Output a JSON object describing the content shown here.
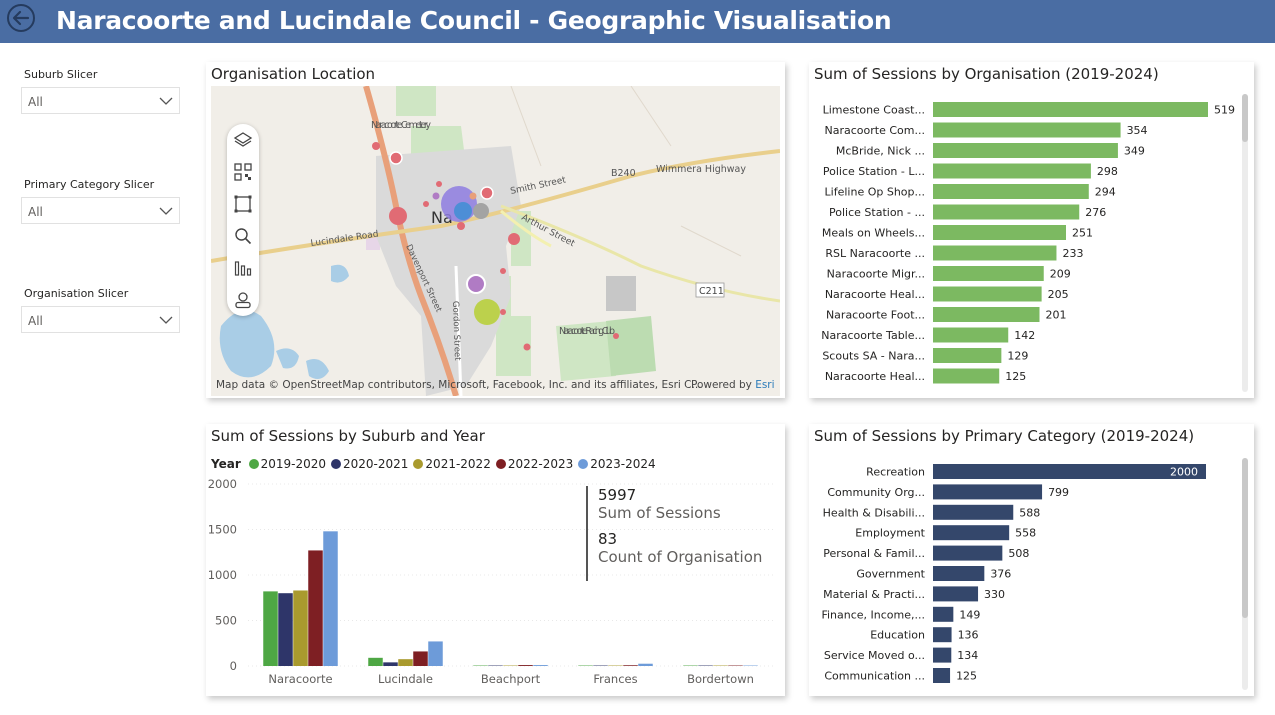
{
  "header": {
    "title": "Naracoorte and Lucindale Council - Geographic Visualisation"
  },
  "slicers": [
    {
      "title": "Suburb Slicer",
      "value": "All"
    },
    {
      "title": "Primary Category Slicer",
      "value": "All"
    },
    {
      "title": "Organisation Slicer",
      "value": "All"
    }
  ],
  "map": {
    "title": "Organisation Location",
    "labels": {
      "cemetery": "Naracoorte Cemetery",
      "highway": "Wimmera Highway",
      "b240": "B240",
      "smith": "Smith Street",
      "arthur": "Arthur Street",
      "lucindale": "Lucindale Road",
      "davenport": "Davenport Street",
      "gordon": "Gordon Street",
      "c211": "C211",
      "racing": "Naracoorte Racing Club",
      "town": "Na"
    },
    "credit": "Map data © OpenStreetMap contributors, Microsoft, Facebook, Inc. and its affiliates, Esri C...",
    "powered_prefix": "Powered by",
    "powered_brand": "Esri",
    "tools": [
      "layers-icon",
      "qr-icon",
      "select-icon",
      "search-icon",
      "bars-icon",
      "person-icon"
    ]
  },
  "org_chart": {
    "title": "Sum of Sessions by Organisation (2019-2024)",
    "color": "#7cb961",
    "chart_data": {
      "type": "bar",
      "categories": [
        "Limestone Coast...",
        "Naracoorte Com...",
        "McBride, Nick ...",
        "Police Station - L...",
        "Lifeline Op Shop...",
        "Police Station - ...",
        "Meals on Wheels...",
        "RSL Naracoorte ...",
        "Naracoorte Migr...",
        "Naracoorte Heal...",
        "Naracoorte Foot...",
        "Naracoorte Table...",
        "Scouts SA - Nara...",
        "Naracoorte Heal..."
      ],
      "values": [
        519,
        354,
        349,
        298,
        294,
        276,
        251,
        233,
        209,
        205,
        201,
        142,
        129,
        125
      ],
      "xlim": [
        0,
        519
      ]
    }
  },
  "cat_chart": {
    "title": "Sum of Sessions by Primary Category (2019-2024)",
    "color": "#34476b",
    "chart_data": {
      "type": "bar",
      "categories": [
        "Recreation",
        "Community Org...",
        "Health & Disabili...",
        "Employment",
        "Personal & Famil...",
        "Government",
        "Material & Practi...",
        "Finance, Income,...",
        "Education",
        "Service Moved o...",
        "Communication ..."
      ],
      "values": [
        2000,
        799,
        588,
        558,
        508,
        376,
        330,
        149,
        136,
        134,
        125
      ],
      "xlim": [
        0,
        2000
      ]
    }
  },
  "suburb_chart": {
    "title": "Sum of Sessions by Suburb and Year",
    "legend_label": "Year",
    "kpi": {
      "sessions_value": "5997",
      "sessions_caption": "Sum of Sessions",
      "orgs_value": "83",
      "orgs_caption": "Count of Organisation"
    },
    "chart_data": {
      "type": "bar",
      "categories": [
        "Naracoorte",
        "Lucindale",
        "Beachport",
        "Frances",
        "Bordertown"
      ],
      "series": [
        {
          "name": "2019-2020",
          "color": "#4ea744",
          "values": [
            820,
            90,
            5,
            5,
            5
          ]
        },
        {
          "name": "2020-2021",
          "color": "#2e3569",
          "values": [
            800,
            40,
            5,
            5,
            5
          ]
        },
        {
          "name": "2021-2022",
          "color": "#a99a2e",
          "values": [
            830,
            75,
            5,
            5,
            5
          ]
        },
        {
          "name": "2022-2023",
          "color": "#7e1f23",
          "values": [
            1270,
            160,
            10,
            8,
            5
          ]
        },
        {
          "name": "2023-2024",
          "color": "#6d9bd9",
          "values": [
            1480,
            270,
            10,
            25,
            5
          ]
        }
      ],
      "ylim": [
        0,
        2000
      ],
      "yticks": [
        "0",
        "500",
        "1000",
        "1500",
        "2000"
      ]
    }
  }
}
